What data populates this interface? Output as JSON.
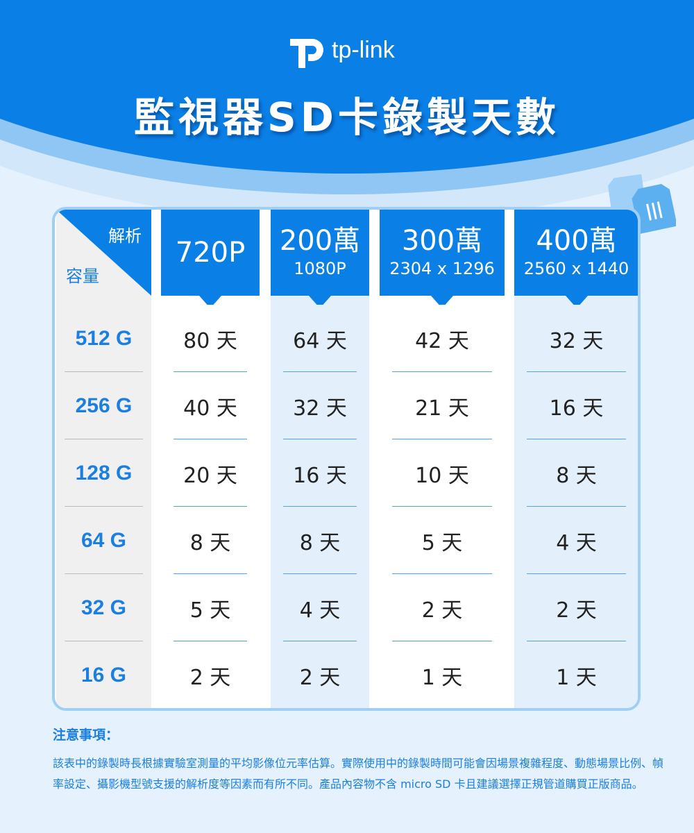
{
  "brand": {
    "name": "tp-link"
  },
  "title": "監視器SD卡錄製天數",
  "table": {
    "corner": {
      "top": "解析",
      "bottom": "容量"
    },
    "columns": [
      {
        "main": "720P",
        "sub": ""
      },
      {
        "main": "200萬",
        "sub": "1080P"
      },
      {
        "main": "300萬",
        "sub": "2304 x 1296"
      },
      {
        "main": "400萬",
        "sub": "2560 x 1440"
      }
    ],
    "rows": [
      {
        "capacity": "512 G",
        "values": [
          "80 天",
          "64 天",
          "42 天",
          "32 天"
        ]
      },
      {
        "capacity": "256 G",
        "values": [
          "40 天",
          "32 天",
          "21 天",
          "16 天"
        ]
      },
      {
        "capacity": "128 G",
        "values": [
          "20 天",
          "16 天",
          "10 天",
          "8 天"
        ]
      },
      {
        "capacity": "64 G",
        "values": [
          "8 天",
          "8 天",
          "5 天",
          "4 天"
        ]
      },
      {
        "capacity": "32 G",
        "values": [
          "5 天",
          "4 天",
          "2 天",
          "2 天"
        ]
      },
      {
        "capacity": "16 G",
        "values": [
          "2 天",
          "2 天",
          "1 天",
          "1 天"
        ]
      }
    ]
  },
  "notes": {
    "heading": "注意事項：",
    "text": "該表中的錄製時長根據實驗室測量的平均影像位元率估算。實際使用中的錄製時間可能會因場景複雜程度、動態場景比例、幀率設定、攝影機型號支援的解析度等因素而有所不同。產品內容物不含 micro SD 卡且建議選擇正規管道購買正版商品。"
  },
  "colors": {
    "primary": "#0a7fe6",
    "accent_text": "#1a7fe0",
    "alt_column": "#e3effa",
    "label_column": "#f0f0f0"
  }
}
